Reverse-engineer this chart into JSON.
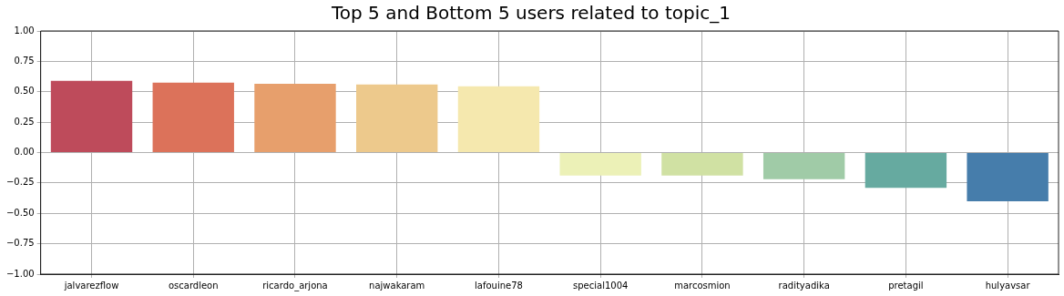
{
  "chart_data": {
    "type": "bar",
    "title": "Top 5 and Bottom 5 users related to topic_1",
    "categories": [
      "jalvarezflow",
      "oscardleon",
      "ricardo_arjona",
      "najwakaram",
      "lafouine78",
      "special1004",
      "marcosmion",
      "radityadika",
      "pretagil",
      "hulyavsar"
    ],
    "values": [
      0.59,
      0.575,
      0.565,
      0.56,
      0.545,
      -0.19,
      -0.19,
      -0.22,
      -0.29,
      -0.4
    ],
    "colors": [
      "#be4b5b",
      "#dc725a",
      "#e79f6c",
      "#edc98c",
      "#f5e8ae",
      "#ecf1b7",
      "#d0e1a3",
      "#a0cba7",
      "#66aaa0",
      "#467dab"
    ],
    "ylim": [
      -1,
      1
    ],
    "yticks": [
      {
        "value": -1,
        "label": "−1.00"
      },
      {
        "value": -0.75,
        "label": "−0.75"
      },
      {
        "value": -0.5,
        "label": "−0.50"
      },
      {
        "value": -0.25,
        "label": "−0.25"
      },
      {
        "value": 0,
        "label": "0.00"
      },
      {
        "value": 0.25,
        "label": "0.25"
      },
      {
        "value": 0.5,
        "label": "0.50"
      },
      {
        "value": 0.75,
        "label": "0.75"
      },
      {
        "value": 1,
        "label": "1.00"
      }
    ],
    "grid": true
  }
}
